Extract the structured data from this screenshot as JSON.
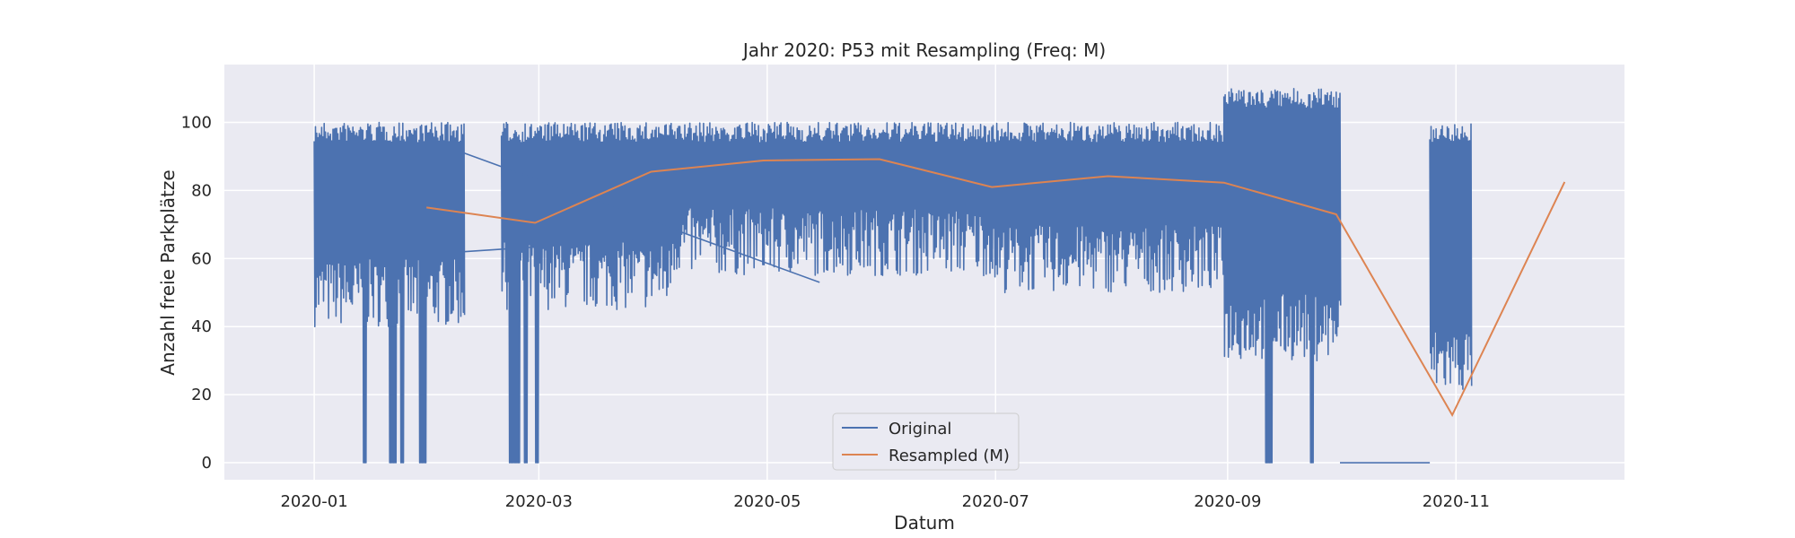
{
  "chart_data": {
    "type": "line",
    "title": "Jahr 2020: P53 mit Resampling (Freq: M)",
    "xlabel": "Datum",
    "ylabel": "Anzahl freie Parkplätze",
    "x_range": [
      "2019-12-08",
      "2020-12-16"
    ],
    "ylim": [
      -5,
      117
    ],
    "x_ticks": [
      "2020-01-01",
      "2020-03-01",
      "2020-05-01",
      "2020-07-01",
      "2020-09-01",
      "2020-11-01"
    ],
    "x_tick_labels": [
      "2020-01",
      "2020-03",
      "2020-05",
      "2020-07",
      "2020-09",
      "2020-11"
    ],
    "y_ticks": [
      0,
      20,
      40,
      60,
      80,
      100
    ],
    "grid": true,
    "background": "#eaeaf2",
    "legend": {
      "placement": "lower center",
      "entries": [
        "Original",
        "Resampled (M)"
      ]
    },
    "series": [
      {
        "name": "Original",
        "color": "#4c72b0",
        "style": "oscillating",
        "segments": [
          {
            "start": "2020-01-01",
            "end": "2020-02-10",
            "low": 40,
            "high": 100,
            "dip_days": [
              13,
              20,
              21,
              23,
              28,
              29
            ]
          },
          {
            "start": "2020-02-20",
            "end": "2020-04-05",
            "low": 45,
            "high": 100,
            "dip_days": [
              52,
              53,
              54,
              56,
              59
            ]
          },
          {
            "start": "2020-04-05",
            "end": "2020-06-30",
            "low": 55,
            "high": 100,
            "dip_days": []
          },
          {
            "start": "2020-06-30",
            "end": "2020-08-31",
            "low": 50,
            "high": 100,
            "dip_days": []
          },
          {
            "start": "2020-08-31",
            "end": "2020-10-01",
            "low": 30,
            "high": 110,
            "dip_days": [
              254,
              255,
              266
            ]
          },
          {
            "start": "2020-10-25",
            "end": "2020-11-05",
            "low": 20,
            "high": 100,
            "dip_days": []
          }
        ],
        "connectors": [
          {
            "x": [
              "2020-02-10",
              "2020-05-15"
            ],
            "y": [
              91,
              53
            ]
          },
          {
            "x": [
              "2020-02-10",
              "2020-04-05"
            ],
            "y": [
              62,
              66
            ]
          },
          {
            "x": [
              "2020-04-05",
              "2020-05-15"
            ],
            "y": [
              82,
              84
            ]
          },
          {
            "x": [
              "2020-10-01",
              "2020-10-25"
            ],
            "y": [
              0,
              0
            ]
          }
        ]
      },
      {
        "name": "Resampled (M)",
        "color": "#dd8452",
        "x": [
          "2020-01-31",
          "2020-02-29",
          "2020-03-31",
          "2020-04-30",
          "2020-05-31",
          "2020-06-30",
          "2020-07-31",
          "2020-08-31",
          "2020-09-30",
          "2020-10-31",
          "2020-11-30"
        ],
        "y": [
          75,
          70.5,
          85.5,
          88.8,
          89.2,
          81,
          84.2,
          82.3,
          73,
          14,
          82.5
        ]
      }
    ]
  }
}
